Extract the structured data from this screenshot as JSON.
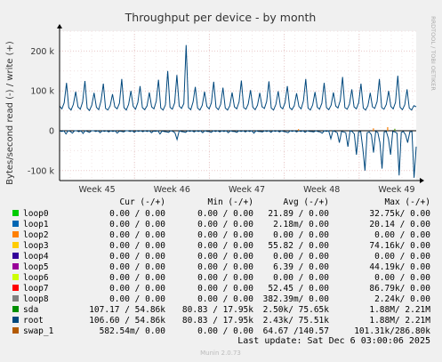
{
  "chart_data": {
    "type": "line",
    "title": "Throughput per device - by month",
    "ylabel": "Bytes/second read (-) / write (+)",
    "xlabel": "",
    "side_label": "RRDTOOL / TOBI OETIKER",
    "ylim": [
      -125000,
      250000
    ],
    "y_ticks": [
      {
        "value": 200000,
        "label": "200 k"
      },
      {
        "value": 100000,
        "label": "100 k"
      },
      {
        "value": 0,
        "label": "0"
      },
      {
        "value": -100000,
        "label": "-100 k"
      }
    ],
    "x_ticks": [
      "Week 45",
      "Week 46",
      "Week 47",
      "Week 48",
      "Week 49"
    ],
    "grid": true,
    "write_series_name": "root",
    "write_values": [
      62000,
      55000,
      70000,
      120000,
      58000,
      52000,
      66000,
      98000,
      60000,
      54000,
      72000,
      125000,
      57000,
      51000,
      64000,
      95000,
      59000,
      53000,
      75000,
      118000,
      56000,
      52000,
      63000,
      92000,
      60000,
      55000,
      69000,
      130000,
      58000,
      52000,
      66000,
      100000,
      61000,
      54000,
      71000,
      112000,
      58000,
      53000,
      62000,
      96000,
      60000,
      55000,
      74000,
      128000,
      57000,
      52000,
      65000,
      150000,
      59000,
      54000,
      70000,
      140000,
      62000,
      56000,
      68000,
      215000,
      58000,
      53000,
      72000,
      110000,
      57000,
      52000,
      64000,
      98000,
      61000,
      55000,
      70000,
      123000,
      59000,
      53000,
      66000,
      108000,
      57000,
      52000,
      63000,
      96000,
      60000,
      55000,
      72000,
      126000,
      58000,
      54000,
      67000,
      102000,
      59000,
      53000,
      64000,
      95000,
      60000,
      56000,
      73000,
      124000,
      57000,
      52000,
      66000,
      99000,
      60000,
      55000,
      70000,
      112000,
      58000,
      53000,
      63000,
      94000,
      61000,
      55000,
      75000,
      130000,
      57000,
      52000,
      65000,
      97000,
      59000,
      54000,
      69000,
      120000,
      58000,
      53000,
      64000,
      96000,
      62000,
      57000,
      76000,
      135000,
      58000,
      54000,
      67000,
      104000,
      60000,
      55000,
      70000,
      118000,
      57000,
      52000,
      63000,
      95000,
      60000,
      56000,
      73000,
      130000,
      58000,
      54000,
      66000,
      100000,
      61000,
      55000,
      71000,
      138000,
      59000,
      53000,
      65000,
      104000,
      57000,
      52000,
      63000,
      60000
    ],
    "read_series_name": "root",
    "read_values": [
      0,
      -2000,
      0,
      -8000,
      0,
      -1500,
      -6000,
      0,
      0,
      -2500,
      0,
      -7000,
      0,
      -1800,
      -4000,
      0,
      0,
      -2000,
      0,
      -5000,
      0,
      -1500,
      0,
      -3000,
      0,
      -2000,
      0,
      -6000,
      -1000,
      -1500,
      -3000,
      0,
      0,
      -2000,
      0,
      -4000,
      0,
      -1500,
      0,
      -2500,
      0,
      -2000,
      0,
      -5000,
      -1000,
      -1500,
      0,
      -8000,
      -1000,
      -2000,
      -3000,
      -4000,
      0,
      -1500,
      -5000,
      -22000,
      0,
      -2000,
      -3000,
      -4000,
      0,
      -1500,
      0,
      -3000,
      0,
      -2000,
      0,
      -5000,
      0,
      -1500,
      -2000,
      -4000,
      0,
      -2000,
      0,
      -3000,
      0,
      -2000,
      0,
      -5000,
      0,
      -1500,
      -2000,
      -4000,
      0,
      -2000,
      0,
      -3000,
      0,
      -2000,
      0,
      -6000,
      0,
      -1500,
      -2000,
      -3000,
      0,
      -2000,
      0,
      -4000,
      0,
      -1500,
      0,
      -3000,
      0,
      -2000,
      -3000,
      -5000,
      0,
      -1500,
      0,
      -3000,
      0,
      -2000,
      0,
      -4000,
      0,
      -1500,
      -2000,
      -3000,
      0,
      -2000,
      -3000,
      -6000,
      0,
      -1500,
      0,
      -20000,
      0,
      -2000,
      -5000,
      -30000,
      -2000,
      -3000,
      -5000,
      -40000,
      0,
      -2000,
      -8000,
      -60000,
      -3000,
      -2000,
      -45000,
      -100000,
      -5000,
      -3000,
      -10000,
      -55000,
      -2000,
      -4000,
      -30000,
      -95000,
      -3000,
      -2000,
      -20000,
      -60000,
      -2000,
      -3000,
      -6000,
      -112000,
      -4000,
      -2000,
      -10000,
      -30000,
      -3000,
      -2000,
      -118000,
      -40000
    ],
    "spike_marks": [
      {
        "color": "#f57900",
        "x_frac": 0.92,
        "value": 9000
      },
      {
        "color": "#f57900",
        "x_frac": 0.88,
        "value": 6000
      },
      {
        "color": "#f57900",
        "x_frac": 0.67,
        "value": 4000
      },
      {
        "color": "#4e9a06",
        "x_frac": 0.94,
        "value": 5000
      }
    ],
    "legend_columns": [
      "Cur (-/+)",
      "Min (-/+)",
      "Avg (-/+)",
      "Max (-/+)"
    ],
    "legend": [
      {
        "name": "loop0",
        "color": "#00cc00",
        "cur": "0.00 /  0.00",
        "min": "0.00 /  0.00",
        "avg": "21.89 /  0.00",
        "max": "32.75k/  0.00"
      },
      {
        "name": "loop1",
        "color": "#0066b3",
        "cur": "0.00 /  0.00",
        "min": "0.00 /  0.00",
        "avg": "2.18m/  0.00",
        "max": "20.14 /  0.00"
      },
      {
        "name": "loop2",
        "color": "#ff8000",
        "cur": "0.00 /  0.00",
        "min": "0.00 /  0.00",
        "avg": "0.00 /  0.00",
        "max": "0.00 /  0.00"
      },
      {
        "name": "loop3",
        "color": "#ffcc00",
        "cur": "0.00 /  0.00",
        "min": "0.00 /  0.00",
        "avg": "55.82 /  0.00",
        "max": "74.16k/  0.00"
      },
      {
        "name": "loop4",
        "color": "#330099",
        "cur": "0.00 /  0.00",
        "min": "0.00 /  0.00",
        "avg": "0.00 /  0.00",
        "max": "0.00 /  0.00"
      },
      {
        "name": "loop5",
        "color": "#990099",
        "cur": "0.00 /  0.00",
        "min": "0.00 /  0.00",
        "avg": "6.39 /  0.00",
        "max": "44.19k/  0.00"
      },
      {
        "name": "loop6",
        "color": "#ccff00",
        "cur": "0.00 /  0.00",
        "min": "0.00 /  0.00",
        "avg": "0.00 /  0.00",
        "max": "0.00 /  0.00"
      },
      {
        "name": "loop7",
        "color": "#ff0000",
        "cur": "0.00 /  0.00",
        "min": "0.00 /  0.00",
        "avg": "52.45 /  0.00",
        "max": "86.79k/  0.00"
      },
      {
        "name": "loop8",
        "color": "#808080",
        "cur": "0.00 /  0.00",
        "min": "0.00 /  0.00",
        "avg": "382.39m/  0.00",
        "max": "2.24k/  0.00"
      },
      {
        "name": "sda",
        "color": "#008f00",
        "cur": "107.17 / 54.86k",
        "min": "80.83 / 17.95k",
        "avg": "2.50k/ 75.65k",
        "max": "1.88M/  2.21M"
      },
      {
        "name": "root",
        "color": "#00487d",
        "cur": "106.60 / 54.86k",
        "min": "80.83 / 17.95k",
        "avg": "2.43k/ 75.51k",
        "max": "1.88M/  2.21M"
      },
      {
        "name": "swap_1",
        "color": "#b35a00",
        "cur": "582.54m/  0.00",
        "min": "0.00 /  0.00",
        "avg": "64.67 /140.57",
        "max": "101.31k/286.80k"
      }
    ],
    "last_update": "Last update: Sat Dec  6 03:00:06 2025",
    "footer": "Munin 2.0.73"
  }
}
